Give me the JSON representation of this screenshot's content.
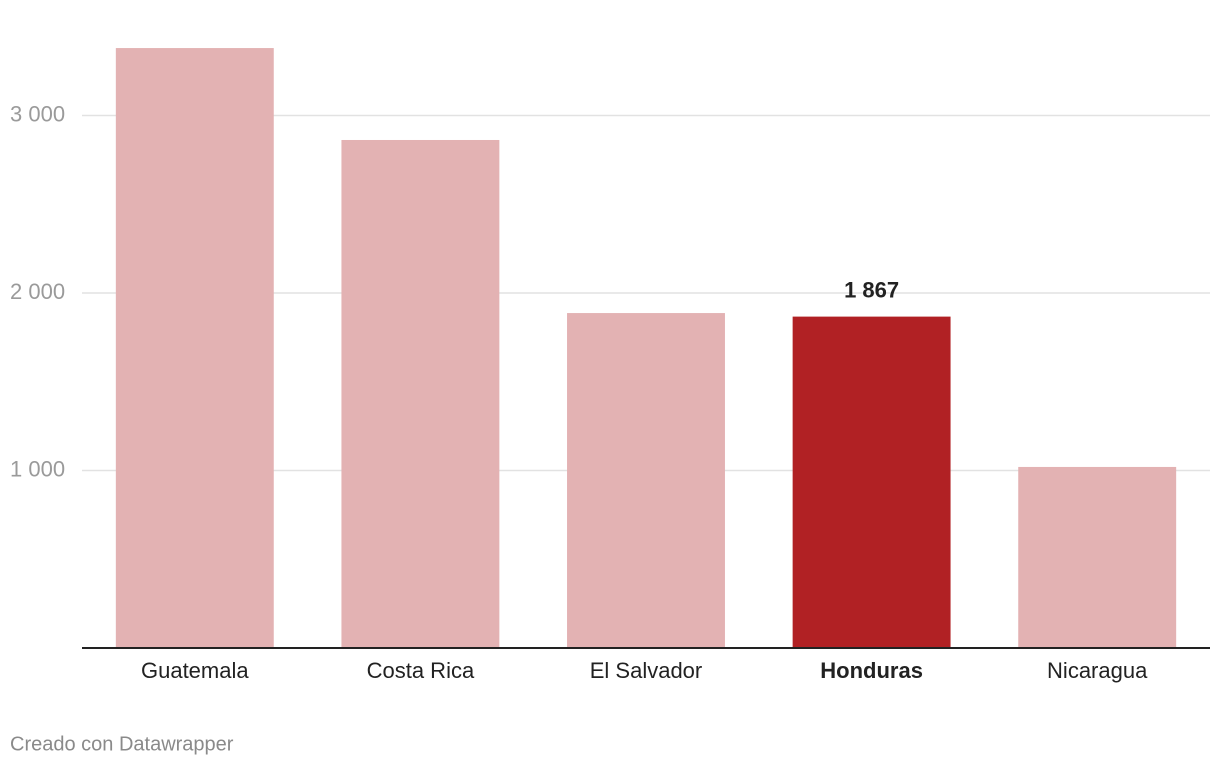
{
  "chart_data": {
    "type": "bar",
    "categories": [
      "Guatemala",
      "Costa Rica",
      "El Salvador",
      "Honduras",
      "Nicaragua"
    ],
    "values": [
      3380,
      2862,
      1887,
      1867,
      1020
    ],
    "value_labels": [
      null,
      null,
      null,
      "1 867",
      null
    ],
    "colors": [
      "#e3b2b3",
      "#e3b2b3",
      "#e3b2b3",
      "#b12124",
      "#e3b2b3"
    ],
    "highlight": 3,
    "ylim": [
      0,
      3400
    ],
    "yticks": [
      {
        "value": 1000,
        "label": "1 000"
      },
      {
        "value": 2000,
        "label": "2 000"
      },
      {
        "value": 3000,
        "label": "3 000"
      }
    ],
    "grid": true
  },
  "footer": "Creado con Datawrapper"
}
